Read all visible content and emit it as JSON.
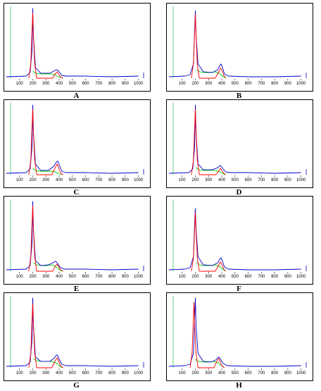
{
  "chart_data": [
    {
      "type": "line",
      "label": "A",
      "xticks": [
        100,
        200,
        300,
        400,
        500,
        600,
        700,
        800,
        900,
        1000
      ],
      "xlim": [
        0,
        1050
      ],
      "series": [
        {
          "color": "#0000cc",
          "x": [
            0,
            150,
            180,
            195,
            200,
            205,
            220,
            260,
            330,
            360,
            380,
            390,
            400,
            420,
            450,
            600,
            800,
            1000
          ],
          "y": [
            2,
            3,
            8,
            40,
            98,
            60,
            15,
            7,
            7,
            10,
            12,
            11,
            9,
            4,
            3,
            3,
            2,
            3
          ]
        },
        {
          "color": "#ff0000",
          "x": [
            170,
            185,
            195,
            200,
            205,
            215,
            230,
            350,
            370,
            385,
            395,
            410,
            430
          ],
          "y": [
            0,
            20,
            70,
            92,
            60,
            20,
            0,
            0,
            6,
            9,
            6,
            2,
            0
          ]
        },
        {
          "color": "#00cc00",
          "x": [
            200,
            220,
            260,
            300,
            340,
            370,
            380,
            400,
            430
          ],
          "y": [
            10,
            7,
            6,
            6,
            6,
            5,
            3,
            2,
            0
          ]
        }
      ]
    },
    {
      "type": "line",
      "label": "B",
      "xticks": [
        100,
        200,
        300,
        400,
        500,
        600,
        700,
        800,
        900,
        1000
      ],
      "xlim": [
        0,
        1050
      ],
      "series": [
        {
          "color": "#0000cc",
          "x": [
            0,
            120,
            160,
            185,
            195,
            200,
            205,
            220,
            260,
            330,
            370,
            385,
            395,
            405,
            420,
            450,
            600,
            800,
            1000
          ],
          "y": [
            2,
            3,
            5,
            20,
            70,
            95,
            60,
            20,
            9,
            8,
            12,
            18,
            20,
            15,
            6,
            3,
            2,
            2,
            3
          ]
        },
        {
          "color": "#ff0000",
          "x": [
            170,
            185,
            195,
            200,
            205,
            215,
            230,
            350,
            375,
            390,
            400,
            415,
            430
          ],
          "y": [
            0,
            20,
            65,
            90,
            60,
            18,
            0,
            0,
            8,
            14,
            12,
            4,
            0
          ]
        },
        {
          "color": "#00cc00",
          "x": [
            210,
            230,
            270,
            310,
            350,
            380,
            400,
            430
          ],
          "y": [
            12,
            9,
            8,
            8,
            9,
            7,
            4,
            0
          ]
        }
      ]
    },
    {
      "type": "line",
      "label": "C",
      "xticks": [
        100,
        200,
        300,
        400,
        500,
        600,
        700,
        800,
        900,
        1000
      ],
      "xlim": [
        0,
        1050
      ],
      "series": [
        {
          "color": "#0000cc",
          "x": [
            0,
            150,
            180,
            195,
            200,
            205,
            220,
            260,
            320,
            360,
            380,
            390,
            400,
            420,
            450,
            600,
            800,
            1000
          ],
          "y": [
            2,
            3,
            8,
            40,
            98,
            60,
            15,
            6,
            6,
            12,
            18,
            19,
            14,
            5,
            3,
            3,
            2,
            3
          ]
        },
        {
          "color": "#ff0000",
          "x": [
            170,
            185,
            195,
            200,
            205,
            215,
            230,
            345,
            370,
            385,
            395,
            410,
            430
          ],
          "y": [
            0,
            20,
            70,
            92,
            60,
            20,
            0,
            0,
            10,
            15,
            10,
            3,
            0
          ]
        },
        {
          "color": "#00cc00",
          "x": [
            200,
            220,
            260,
            300,
            340,
            370,
            390,
            420
          ],
          "y": [
            9,
            6,
            5,
            5,
            5,
            4,
            2,
            0
          ]
        }
      ]
    },
    {
      "type": "line",
      "label": "D",
      "xticks": [
        100,
        200,
        300,
        400,
        500,
        600,
        700,
        800,
        900,
        1000
      ],
      "xlim": [
        0,
        1050
      ],
      "series": [
        {
          "color": "#0000cc",
          "x": [
            0,
            150,
            180,
            195,
            200,
            205,
            220,
            260,
            330,
            370,
            385,
            395,
            410,
            430,
            460,
            600,
            800,
            1000
          ],
          "y": [
            2,
            3,
            8,
            40,
            98,
            60,
            15,
            7,
            7,
            10,
            13,
            12,
            8,
            4,
            3,
            3,
            2,
            3
          ]
        },
        {
          "color": "#ff0000",
          "x": [
            170,
            185,
            195,
            200,
            205,
            215,
            230,
            355,
            375,
            390,
            400,
            415,
            430
          ],
          "y": [
            0,
            20,
            70,
            92,
            60,
            20,
            0,
            0,
            5,
            9,
            6,
            2,
            0
          ]
        },
        {
          "color": "#00cc00",
          "x": [
            205,
            225,
            265,
            305,
            345,
            375,
            395,
            425
          ],
          "y": [
            10,
            7,
            6,
            6,
            6,
            5,
            3,
            0
          ]
        }
      ]
    },
    {
      "type": "line",
      "label": "E",
      "xticks": [
        100,
        200,
        300,
        400,
        500,
        600,
        700,
        800,
        900,
        1000
      ],
      "xlim": [
        0,
        1050
      ],
      "series": [
        {
          "color": "#0000cc",
          "x": [
            0,
            150,
            180,
            195,
            200,
            205,
            220,
            260,
            320,
            355,
            370,
            380,
            390,
            410,
            440,
            600,
            800,
            1000
          ],
          "y": [
            2,
            3,
            8,
            40,
            98,
            60,
            15,
            8,
            9,
            12,
            14,
            13,
            10,
            5,
            3,
            3,
            2,
            3
          ]
        },
        {
          "color": "#ff0000",
          "x": [
            170,
            185,
            195,
            200,
            205,
            215,
            230,
            350,
            370,
            385,
            395,
            410,
            430
          ],
          "y": [
            0,
            20,
            70,
            92,
            60,
            20,
            0,
            0,
            7,
            10,
            7,
            2,
            0
          ]
        },
        {
          "color": "#00cc00",
          "x": [
            205,
            225,
            265,
            305,
            345,
            370,
            390,
            420
          ],
          "y": [
            12,
            9,
            8,
            8,
            9,
            7,
            4,
            0
          ]
        }
      ]
    },
    {
      "type": "line",
      "label": "F",
      "xticks": [
        100,
        200,
        300,
        400,
        500,
        600,
        700,
        800,
        900,
        1000
      ],
      "xlim": [
        0,
        1050
      ],
      "series": [
        {
          "color": "#0000cc",
          "x": [
            0,
            120,
            160,
            185,
            195,
            200,
            205,
            220,
            260,
            330,
            370,
            385,
            395,
            405,
            420,
            450,
            600,
            800,
            1000
          ],
          "y": [
            2,
            3,
            5,
            20,
            70,
            88,
            60,
            20,
            9,
            8,
            12,
            17,
            19,
            14,
            6,
            3,
            2,
            2,
            3
          ]
        },
        {
          "color": "#ff0000",
          "x": [
            170,
            185,
            195,
            200,
            205,
            215,
            230,
            350,
            375,
            390,
            400,
            415,
            430
          ],
          "y": [
            0,
            18,
            60,
            82,
            55,
            18,
            0,
            0,
            8,
            13,
            10,
            3,
            0
          ]
        },
        {
          "color": "#00cc00",
          "x": [
            210,
            230,
            270,
            310,
            350,
            380,
            400,
            430
          ],
          "y": [
            12,
            9,
            8,
            8,
            9,
            7,
            4,
            0
          ]
        }
      ]
    },
    {
      "type": "line",
      "label": "G",
      "xticks": [
        100,
        200,
        300,
        400,
        500,
        600,
        700,
        800,
        900,
        1000
      ],
      "xlim": [
        0,
        1050
      ],
      "series": [
        {
          "color": "#0000cc",
          "x": [
            0,
            150,
            180,
            195,
            200,
            205,
            220,
            260,
            330,
            365,
            380,
            390,
            400,
            420,
            450,
            600,
            800,
            1000
          ],
          "y": [
            2,
            3,
            8,
            40,
            98,
            60,
            15,
            9,
            9,
            14,
            18,
            17,
            12,
            5,
            3,
            3,
            2,
            3
          ]
        },
        {
          "color": "#ff0000",
          "x": [
            170,
            185,
            195,
            200,
            205,
            215,
            230,
            345,
            370,
            385,
            395,
            410,
            430
          ],
          "y": [
            0,
            20,
            70,
            90,
            60,
            20,
            0,
            0,
            10,
            14,
            10,
            3,
            0
          ]
        },
        {
          "color": "#00cc00",
          "x": [
            205,
            225,
            265,
            305,
            345,
            375,
            395,
            425
          ],
          "y": [
            13,
            10,
            9,
            9,
            9,
            7,
            4,
            0
          ]
        }
      ]
    },
    {
      "type": "line",
      "label": "H",
      "xticks": [
        100,
        200,
        300,
        400,
        500,
        600,
        700,
        800,
        900,
        1000
      ],
      "xlim": [
        0,
        1050
      ],
      "series": [
        {
          "color": "#0000cc",
          "x": [
            0,
            120,
            160,
            185,
            195,
            200,
            205,
            220,
            260,
            320,
            355,
            370,
            380,
            390,
            410,
            440,
            600,
            800,
            1000
          ],
          "y": [
            2,
            3,
            5,
            20,
            70,
            98,
            60,
            20,
            9,
            8,
            11,
            14,
            15,
            12,
            6,
            3,
            2,
            2,
            3
          ]
        },
        {
          "color": "#ff0000",
          "x": [
            160,
            175,
            185,
            190,
            195,
            205,
            220,
            340,
            360,
            375,
            385,
            400,
            420
          ],
          "y": [
            0,
            20,
            70,
            92,
            60,
            20,
            0,
            0,
            8,
            13,
            10,
            3,
            0
          ]
        },
        {
          "color": "#00cc00",
          "x": [
            200,
            220,
            260,
            300,
            340,
            370,
            390,
            420
          ],
          "y": [
            12,
            9,
            8,
            8,
            9,
            7,
            4,
            0
          ]
        }
      ]
    }
  ]
}
